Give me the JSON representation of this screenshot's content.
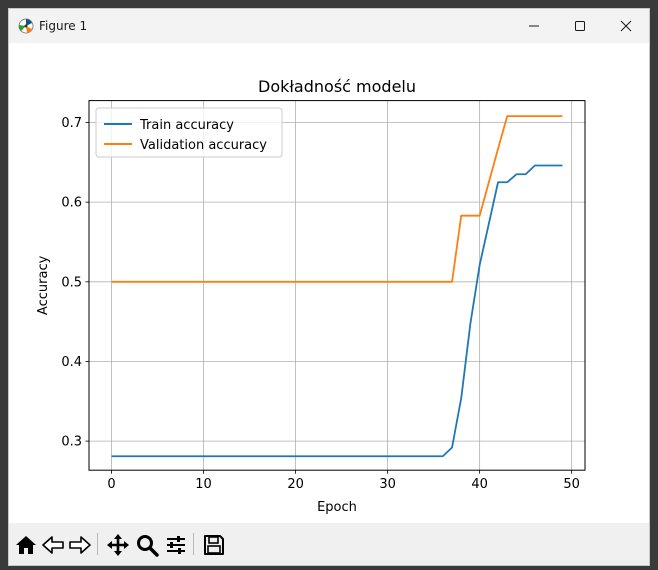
{
  "window": {
    "title": "Figure 1"
  },
  "toolbar": {
    "buttons": [
      "home-icon",
      "back-icon",
      "forward-icon",
      "pan-icon",
      "zoom-icon",
      "configure-subplots-icon",
      "save-icon"
    ]
  },
  "chart_data": {
    "type": "line",
    "title": "Dokładność modelu",
    "xlabel": "Epoch",
    "ylabel": "Accuracy",
    "xlim": [
      -2.45,
      51.45
    ],
    "ylim": [
      0.2635,
      0.7275
    ],
    "xticks": [
      0,
      10,
      20,
      30,
      40,
      50
    ],
    "yticks": [
      0.3,
      0.4,
      0.5,
      0.6,
      0.7
    ],
    "xtick_labels": [
      "0",
      "10",
      "20",
      "30",
      "40",
      "50"
    ],
    "ytick_labels": [
      "0.3",
      "0.4",
      "0.5",
      "0.6",
      "0.7"
    ],
    "grid": true,
    "legend_position": "top-left",
    "x": [
      0,
      1,
      2,
      3,
      4,
      5,
      6,
      7,
      8,
      9,
      10,
      11,
      12,
      13,
      14,
      15,
      16,
      17,
      18,
      19,
      20,
      21,
      22,
      23,
      24,
      25,
      26,
      27,
      28,
      29,
      30,
      31,
      32,
      33,
      34,
      35,
      36,
      37,
      38,
      39,
      40,
      41,
      42,
      43,
      44,
      45,
      46,
      47,
      48,
      49
    ],
    "series": [
      {
        "name": "Train accuracy",
        "color": "#1f77b4",
        "values": [
          0.281,
          0.281,
          0.281,
          0.281,
          0.281,
          0.281,
          0.281,
          0.281,
          0.281,
          0.281,
          0.281,
          0.281,
          0.281,
          0.281,
          0.281,
          0.281,
          0.281,
          0.281,
          0.281,
          0.281,
          0.281,
          0.281,
          0.281,
          0.281,
          0.281,
          0.281,
          0.281,
          0.281,
          0.281,
          0.281,
          0.281,
          0.281,
          0.281,
          0.281,
          0.281,
          0.281,
          0.281,
          0.292,
          0.354,
          0.448,
          0.521,
          0.573,
          0.625,
          0.625,
          0.635,
          0.635,
          0.646,
          0.646,
          0.646,
          0.646
        ]
      },
      {
        "name": "Validation accuracy",
        "color": "#ff7f0e",
        "values": [
          0.5,
          0.5,
          0.5,
          0.5,
          0.5,
          0.5,
          0.5,
          0.5,
          0.5,
          0.5,
          0.5,
          0.5,
          0.5,
          0.5,
          0.5,
          0.5,
          0.5,
          0.5,
          0.5,
          0.5,
          0.5,
          0.5,
          0.5,
          0.5,
          0.5,
          0.5,
          0.5,
          0.5,
          0.5,
          0.5,
          0.5,
          0.5,
          0.5,
          0.5,
          0.5,
          0.5,
          0.5,
          0.5,
          0.583,
          0.583,
          0.583,
          0.625,
          0.667,
          0.708,
          0.708,
          0.708,
          0.708,
          0.708,
          0.708,
          0.708
        ]
      }
    ]
  }
}
